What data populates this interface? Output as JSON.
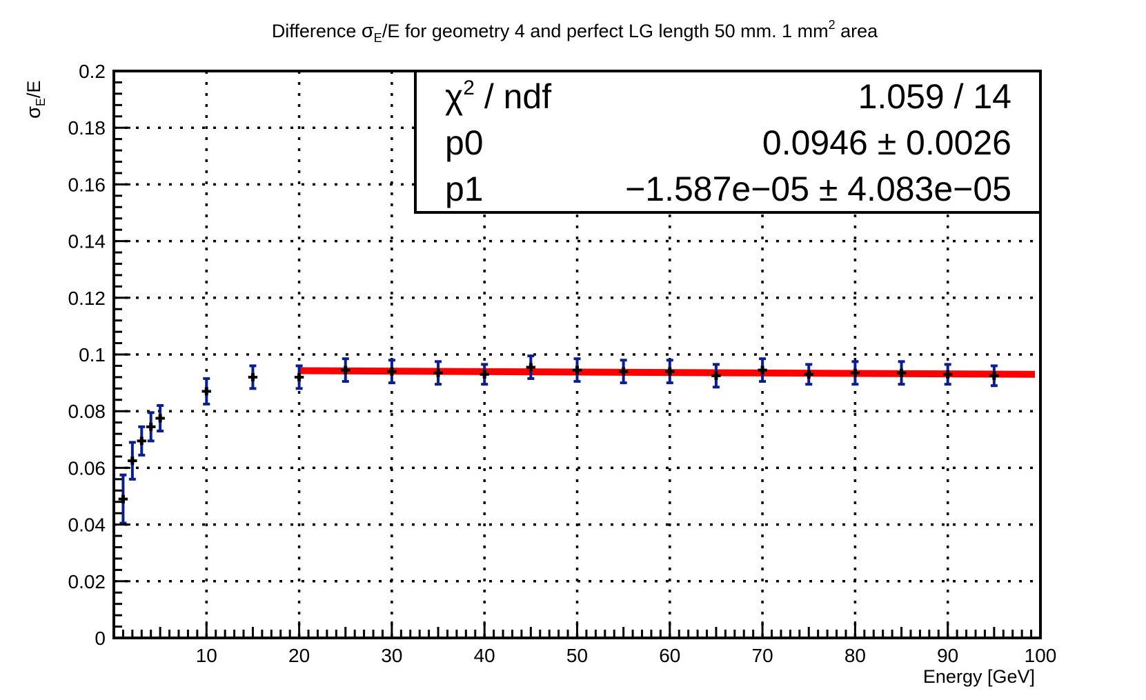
{
  "chart_data": {
    "type": "scatter",
    "title": {
      "prefix": "Difference ",
      "sigma": "σ",
      "sub": "E",
      "suffix": "/E for geometry 4 and perfect LG length 50 mm. 1 mm",
      "sup": "2",
      "tail": " area"
    },
    "xlabel": "Energy [GeV]",
    "ylabel": {
      "sigma": "σ",
      "sub": "E",
      "suffix": "/E"
    },
    "xlim": [
      0,
      100
    ],
    "ylim": [
      0,
      0.2
    ],
    "x_ticks": [
      10,
      20,
      30,
      40,
      50,
      60,
      70,
      80,
      90,
      100
    ],
    "x_tick_labels": [
      "10",
      "20",
      "30",
      "40",
      "50",
      "60",
      "70",
      "80",
      "90",
      "100"
    ],
    "y_ticks": [
      0,
      0.02,
      0.04,
      0.06,
      0.08,
      0.1,
      0.12,
      0.14,
      0.16,
      0.18,
      0.2
    ],
    "y_tick_labels": [
      "0",
      "0.02",
      "0.04",
      "0.06",
      "0.08",
      "0.1",
      "0.12",
      "0.14",
      "0.16",
      "0.18",
      "0.2"
    ],
    "grid": true,
    "series": [
      {
        "name": "data",
        "x": [
          1,
          2,
          3,
          4,
          5,
          10,
          15,
          20,
          25,
          30,
          35,
          40,
          45,
          50,
          55,
          60,
          65,
          70,
          75,
          80,
          85,
          90,
          95
        ],
        "y": [
          0.049,
          0.0625,
          0.0695,
          0.0745,
          0.0775,
          0.087,
          0.092,
          0.092,
          0.0945,
          0.094,
          0.0935,
          0.093,
          0.0955,
          0.0945,
          0.094,
          0.094,
          0.0925,
          0.0945,
          0.093,
          0.0935,
          0.0935,
          0.093,
          0.0925
        ],
        "yerr": [
          0.0085,
          0.0065,
          0.005,
          0.005,
          0.0045,
          0.0045,
          0.004,
          0.004,
          0.004,
          0.004,
          0.004,
          0.0035,
          0.004,
          0.004,
          0.004,
          0.004,
          0.004,
          0.004,
          0.0035,
          0.004,
          0.004,
          0.0035,
          0.0035
        ],
        "xerr": 0.5,
        "marker_color": "#000000",
        "error_color": "#0a1f8f"
      }
    ],
    "fit": {
      "type": "line",
      "p0": 0.0946,
      "p1": -1.587e-05,
      "x_range": [
        20,
        100
      ],
      "color": "#ff0000"
    },
    "stats_box": {
      "placement": "top-right",
      "rows": [
        {
          "label_main": "χ",
          "label_sup": "2",
          "label_rest": " / ndf",
          "value": "1.059 / 14"
        },
        {
          "label": "p0",
          "value": "0.0946 ± 0.0026"
        },
        {
          "label": "p1",
          "value": "−1.587e−05 ± 4.083e−05"
        }
      ]
    }
  }
}
